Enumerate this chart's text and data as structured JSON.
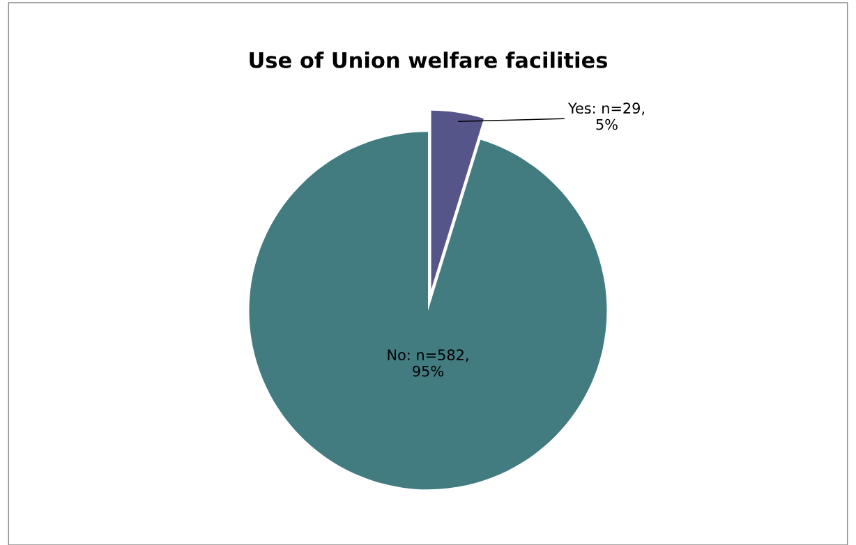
{
  "chart_data": {
    "type": "pie",
    "title": "Use of Union welfare facilities",
    "categories": [
      "Yes: n=29,\n5%",
      "No: n=582,\n95%"
    ],
    "values": [
      29,
      582
    ],
    "colors": [
      "#55558a",
      "#427c80"
    ],
    "legend": false
  }
}
